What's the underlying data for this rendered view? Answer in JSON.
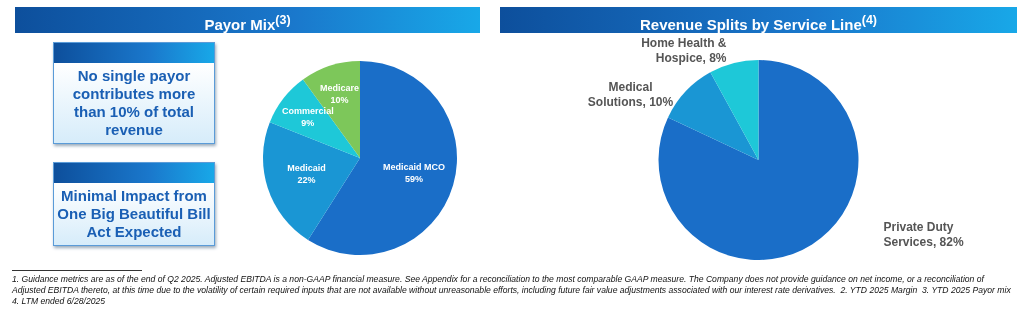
{
  "chart_data": [
    {
      "type": "other",
      "annotations": [
        "No single payor contributes more than 10% of total revenue",
        "Minimal Impact from One Big Beautiful Bill Act Expected"
      ]
    },
    {
      "type": "pie",
      "title": "Payor Mix$^{(3)}$",
      "categories": [
        "Medicaid MCO",
        "Medicaid",
        "Commercial",
        "Medicare"
      ],
      "values": [
        59,
        22,
        9,
        10
      ],
      "value_labels": [
        "59%",
        "22%",
        "9%",
        "10%"
      ],
      "colors": [
        "#1a6ec8",
        "#1a96d4",
        "#1ec8d8",
        "#7dc75a"
      ]
    },
    {
      "type": "pie",
      "title": "Revenue Splits by Service Line$^{(4)}$",
      "categories": [
        "Private Duty Services",
        "Medical Solutions",
        "Home Health & Hospice"
      ],
      "values": [
        82,
        10,
        8
      ],
      "value_labels": [
        "82%",
        "10%",
        "8%"
      ],
      "colors": [
        "#1a6ec8",
        "#1a96d4",
        "#1ec8d8"
      ],
      "annotations": [
        "1. Guidance metrics are as of the end of Q2 2025. Adjusted EBITDA is a non-GAAP financial measure. See Appendix for a reconciliation to the most comparable GAAP measure. The Company does not provide guidance on net income, or a reconciliation of Adjusted EBITDA thereto, at this time due to the volatility of certain required inputs that are not available without unreasonable efforts, including future fair value adjustments associated with our interest rate derivatives.  2. YTD 2025 Margin  3. YTD 2025 Payor mix\n4. LTM ended 6/28/2025"
      ]
    }
  ]
}
